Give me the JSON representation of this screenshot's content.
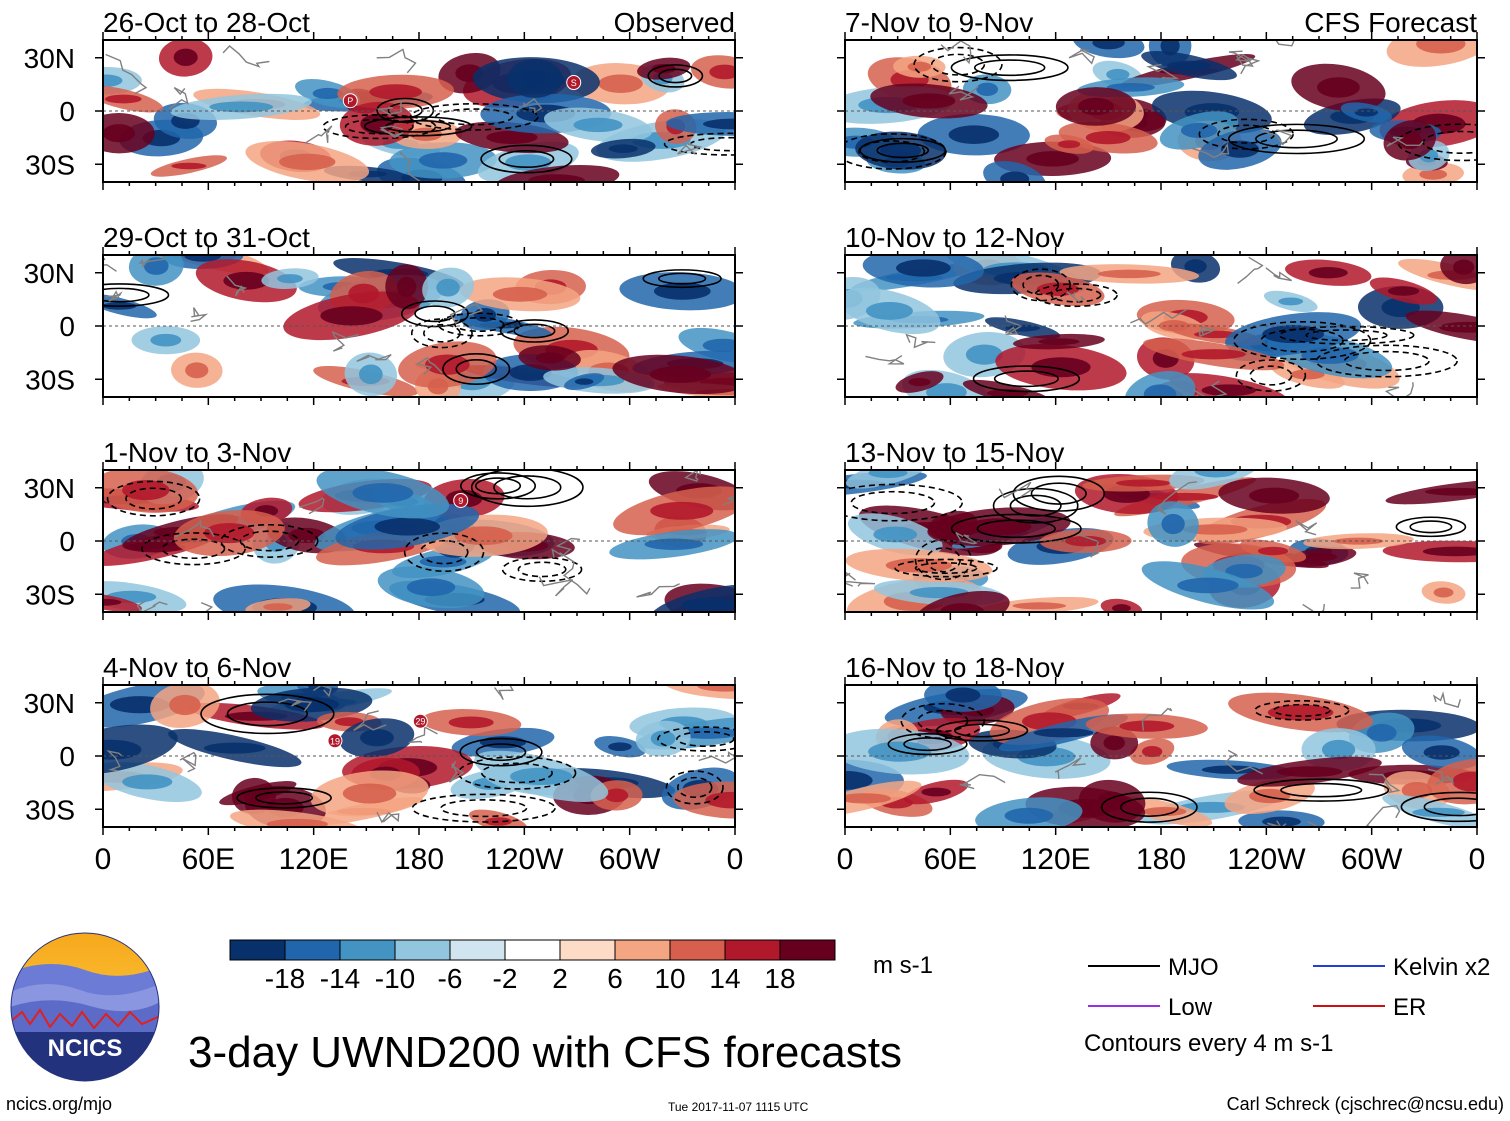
{
  "figure": {
    "title": "3-day UWND200 with CFS forecasts",
    "left_footer": "ncics.org/mjo",
    "timestamp": "Tue 2017-11-07 1115 UTC",
    "author": "Carl Schreck (cjschrec@ncsu.edu)",
    "logo_text": "NCICS"
  },
  "colors": {
    "scale": [
      "#08306b",
      "#2166ac",
      "#4393c3",
      "#92c5de",
      "#d1e5f0",
      "#ffffff",
      "#fddbc7",
      "#f4a582",
      "#d6604d",
      "#b2182b",
      "#67001f"
    ],
    "land": "#808080",
    "contour": "#000000"
  },
  "chart_data": {
    "type": "heatmap",
    "variable": "200-hPa zonal wind anomaly",
    "units": "m s-1",
    "colorbar": {
      "ticks": [
        "-18",
        "-14",
        "-10",
        "-6",
        "-2",
        "2",
        "6",
        "10",
        "14",
        "18"
      ],
      "levels": [
        -18,
        -14,
        -10,
        -6,
        -2,
        2,
        6,
        10,
        14,
        18
      ]
    },
    "x_ticks": [
      "0",
      "60E",
      "120E",
      "180",
      "120W",
      "60W",
      "0"
    ],
    "y_ticks": [
      "30N",
      "0",
      "30S"
    ],
    "ylim": [
      -40,
      40
    ],
    "columns": [
      "Observed",
      "CFS Forecast"
    ],
    "panels": [
      {
        "label": "26-Oct to 28-Oct",
        "column": "Observed",
        "storm_markers": [
          "P",
          "S"
        ]
      },
      {
        "label": "29-Oct to 31-Oct",
        "column": "Observed",
        "storm_markers": []
      },
      {
        "label": "1-Nov to 3-Nov",
        "column": "Observed",
        "storm_markers": [
          "9"
        ]
      },
      {
        "label": "4-Nov to 6-Nov",
        "column": "Observed",
        "storm_markers": [
          "29",
          "19"
        ]
      },
      {
        "label": "7-Nov to 9-Nov",
        "column": "CFS Forecast",
        "storm_markers": []
      },
      {
        "label": "10-Nov to 12-Nov",
        "column": "CFS Forecast",
        "storm_markers": []
      },
      {
        "label": "13-Nov to 15-Nov",
        "column": "CFS Forecast",
        "storm_markers": []
      },
      {
        "label": "16-Nov to 18-Nov",
        "column": "CFS Forecast",
        "storm_markers": []
      }
    ],
    "legend": [
      {
        "label": "MJO",
        "color": "#000000"
      },
      {
        "label": "Kelvin x2",
        "color": "#1f3fd6"
      },
      {
        "label": "Low",
        "color": "#9b30e0"
      },
      {
        "label": "ER",
        "color": "#d01010"
      }
    ],
    "contour_note": "Contours every 4 m s-1"
  }
}
